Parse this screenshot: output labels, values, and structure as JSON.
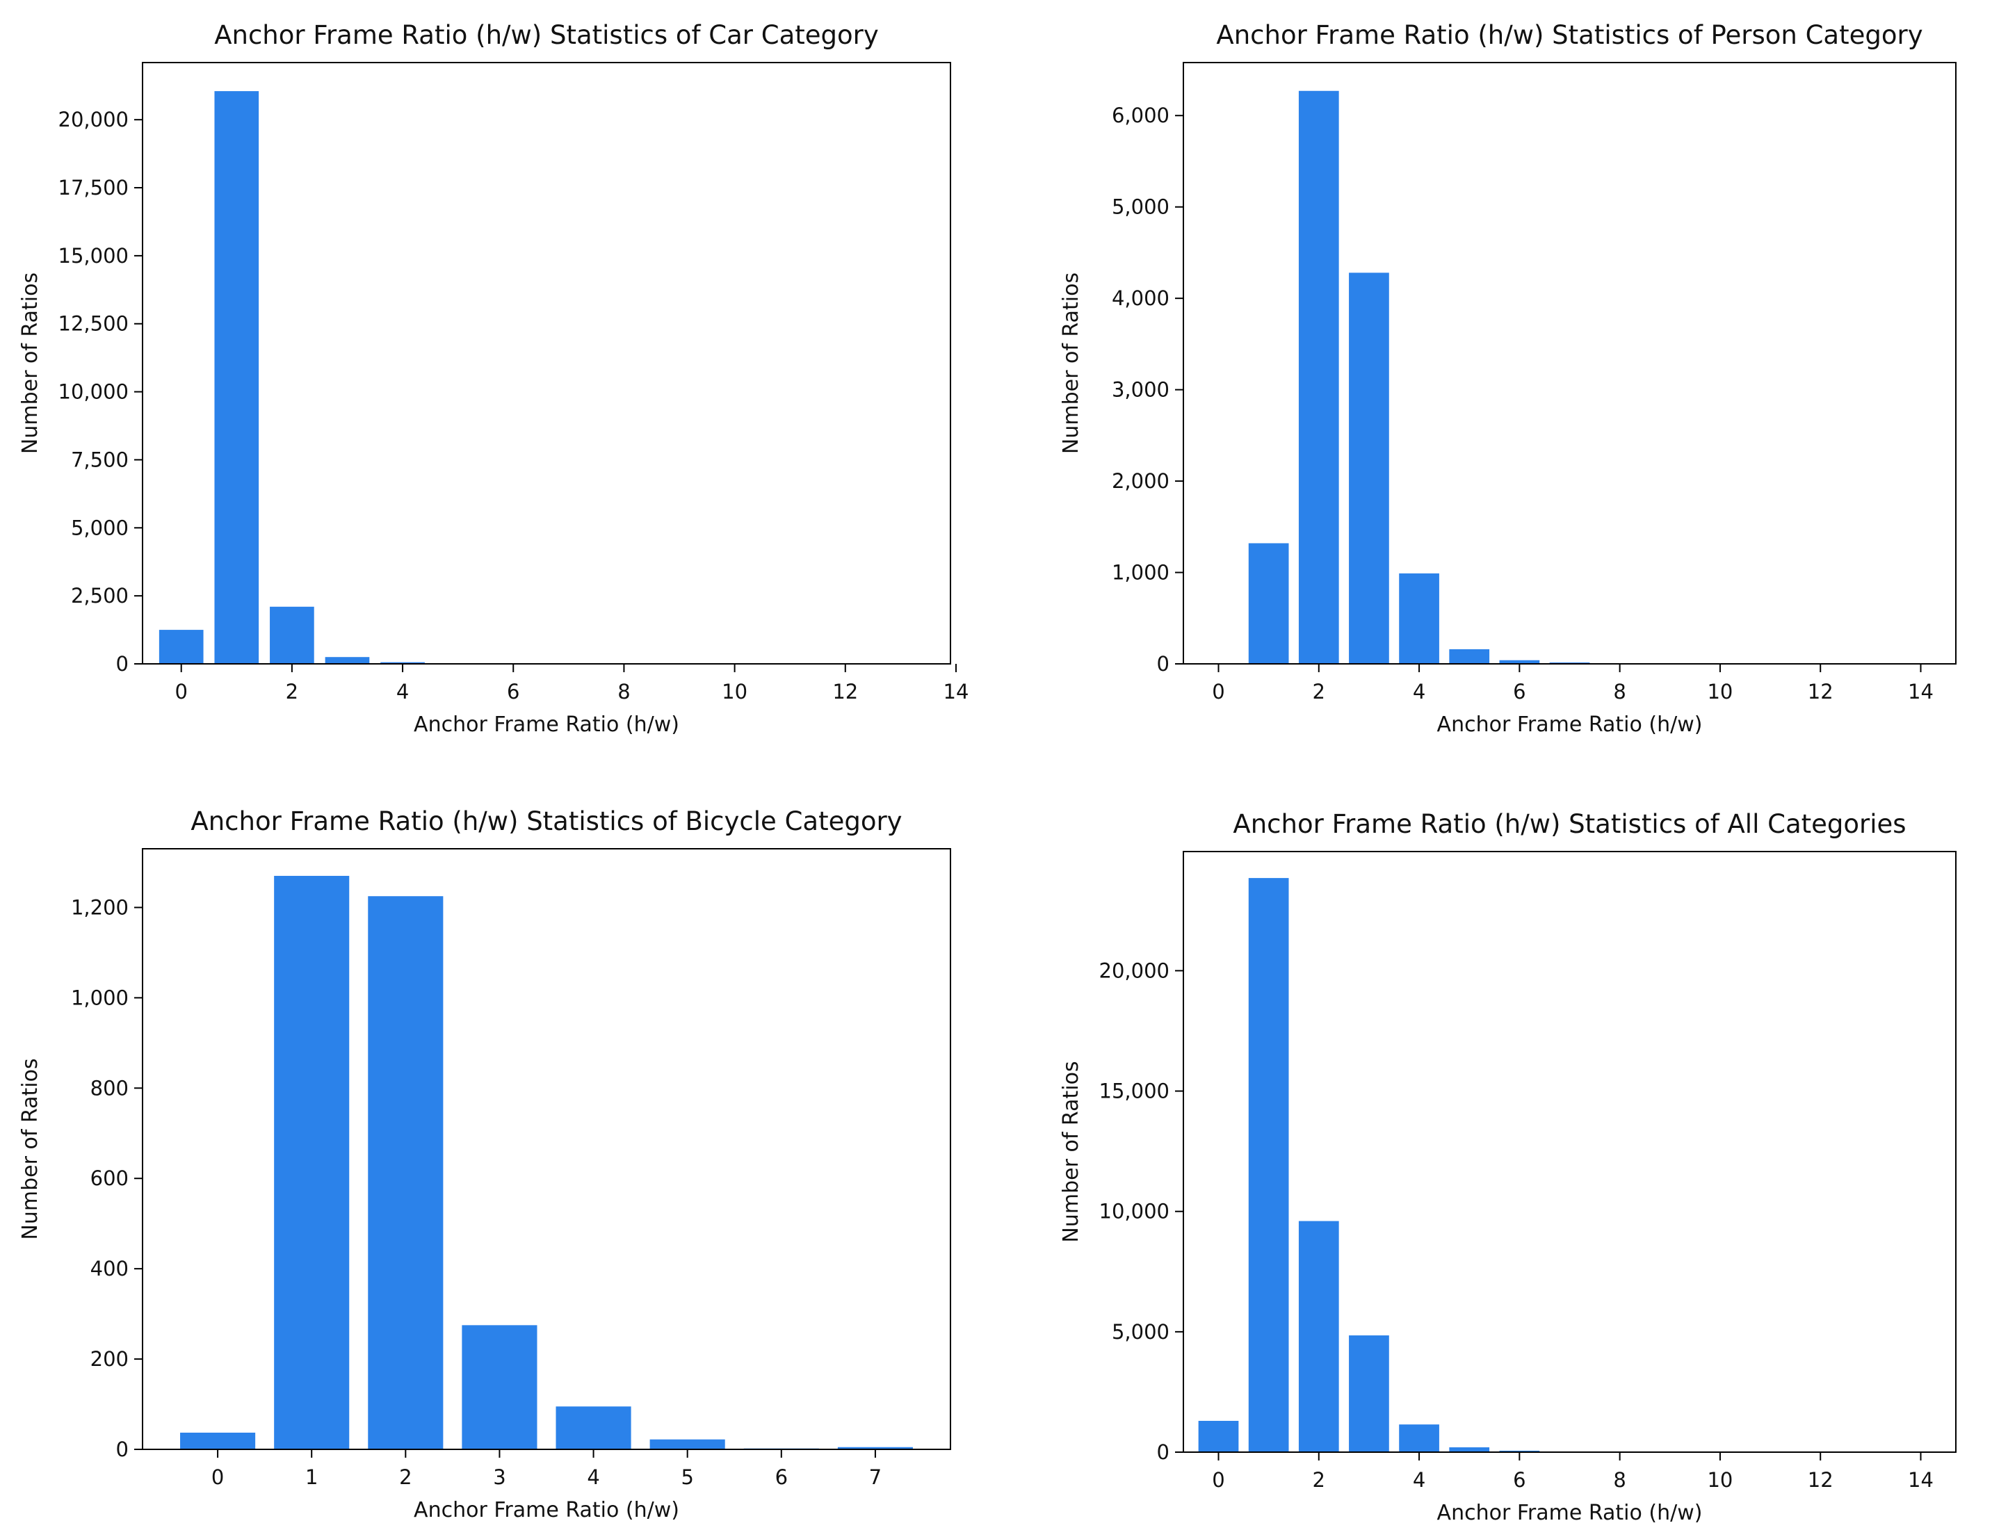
{
  "chart_data": [
    {
      "type": "bar",
      "title": "Anchor Frame Ratio (h/w) Statistics of Car Category",
      "xlabel": "Anchor Frame Ratio (h/w)",
      "ylabel": "Number of Ratios",
      "x": [
        0,
        1,
        2,
        3,
        4
      ],
      "values": [
        1250,
        21050,
        2100,
        250,
        60
      ],
      "xlim": [
        -0.7,
        13.9
      ],
      "ylim": [
        0,
        22100
      ],
      "xticks": [
        0,
        2,
        4,
        6,
        8,
        10,
        12,
        14
      ],
      "xtick_labels": [
        "0",
        "2",
        "4",
        "6",
        "8",
        "10",
        "12",
        "14"
      ],
      "yticks": [
        0,
        2500,
        5000,
        7500,
        10000,
        12500,
        15000,
        17500,
        20000
      ],
      "ytick_labels": [
        "0",
        "2,500",
        "5,000",
        "7,500",
        "10,000",
        "12,500",
        "15,000",
        "17,500",
        "20,000"
      ],
      "grid": false,
      "color": "#2b82ea"
    },
    {
      "type": "bar",
      "title": "Anchor Frame Ratio (h/w) Statistics of Person Category",
      "xlabel": "Anchor Frame Ratio (h/w)",
      "ylabel": "Number of Ratios",
      "x": [
        0,
        1,
        2,
        3,
        4,
        5,
        6,
        7
      ],
      "values": [
        5,
        1320,
        6270,
        4280,
        990,
        160,
        40,
        15
      ],
      "xlim": [
        -0.7,
        14.7
      ],
      "ylim": [
        0,
        6580
      ],
      "xticks": [
        0,
        2,
        4,
        6,
        8,
        10,
        12,
        14
      ],
      "xtick_labels": [
        "0",
        "2",
        "4",
        "6",
        "8",
        "10",
        "12",
        "14"
      ],
      "yticks": [
        0,
        1000,
        2000,
        3000,
        4000,
        5000,
        6000
      ],
      "ytick_labels": [
        "0",
        "1,000",
        "2,000",
        "3,000",
        "4,000",
        "5,000",
        "6,000"
      ],
      "grid": false,
      "color": "#2b82ea"
    },
    {
      "type": "bar",
      "title": "Anchor Frame Ratio (h/w) Statistics of Bicycle Category",
      "xlabel": "Anchor Frame Ratio (h/w)",
      "ylabel": "Number of Ratios",
      "x": [
        0,
        1,
        2,
        3,
        4,
        5,
        6,
        7
      ],
      "values": [
        37,
        1270,
        1225,
        275,
        95,
        22,
        2,
        5
      ],
      "xlim": [
        -0.8,
        7.8
      ],
      "ylim": [
        0,
        1330
      ],
      "xticks": [
        0,
        1,
        2,
        3,
        4,
        5,
        6,
        7
      ],
      "xtick_labels": [
        "0",
        "1",
        "2",
        "3",
        "4",
        "5",
        "6",
        "7"
      ],
      "yticks": [
        0,
        200,
        400,
        600,
        800,
        1000,
        1200
      ],
      "ytick_labels": [
        "0",
        "200",
        "400",
        "600",
        "800",
        "1,000",
        "1,200"
      ],
      "grid": false,
      "color": "#2b82ea"
    },
    {
      "type": "bar",
      "title": "Anchor Frame Ratio (h/w) Statistics of All Categories",
      "xlabel": "Anchor Frame Ratio (h/w)",
      "ylabel": "Number of Ratios",
      "x": [
        0,
        1,
        2,
        3,
        4,
        5,
        6
      ],
      "values": [
        1300,
        23850,
        9600,
        4850,
        1150,
        200,
        60
      ],
      "xlim": [
        -0.7,
        14.7
      ],
      "ylim": [
        0,
        24950
      ],
      "xticks": [
        0,
        2,
        4,
        6,
        8,
        10,
        12,
        14
      ],
      "xtick_labels": [
        "0",
        "2",
        "4",
        "6",
        "8",
        "10",
        "12",
        "14"
      ],
      "yticks": [
        0,
        5000,
        10000,
        15000,
        20000
      ],
      "ytick_labels": [
        "0",
        "5,000",
        "10,000",
        "15,000",
        "20,000"
      ],
      "grid": false,
      "color": "#2b82ea"
    }
  ]
}
